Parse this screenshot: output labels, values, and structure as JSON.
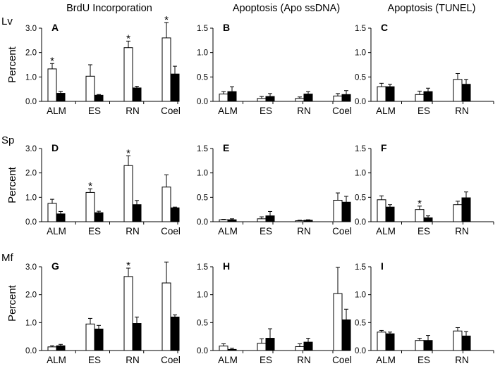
{
  "figure": {
    "column_titles": [
      "BrdU Incorporation",
      "Apoptosis (Apo ssDNA)",
      "Apoptosis (TUNEL)"
    ],
    "row_labels": [
      "Lv",
      "Sp",
      "Mf"
    ],
    "ylabel": "Percent",
    "colors": {
      "open_bar": "#ffffff",
      "filled_bar": "#000000",
      "axis": "#000000"
    }
  },
  "chart_data": [
    {
      "panel": "A",
      "type": "bar",
      "ylim": [
        0,
        3.0
      ],
      "yticks": [
        "0.0",
        "1.0",
        "2.0",
        "3.0"
      ],
      "categories": [
        "ALM",
        "ES",
        "RN",
        "Coel"
      ],
      "series": [
        {
          "values": [
            1.33,
            1.03,
            2.2,
            2.6
          ],
          "errors": [
            0.22,
            0.47,
            0.27,
            0.63
          ]
        },
        {
          "values": [
            0.33,
            0.25,
            0.55,
            1.12
          ],
          "errors": [
            0.08,
            0.03,
            0.07,
            0.32
          ]
        }
      ],
      "significant": [
        "ALM",
        "RN",
        "Coel"
      ]
    },
    {
      "panel": "B",
      "type": "bar",
      "ylim": [
        0,
        1.5
      ],
      "yticks": [
        "0.0",
        "0.5",
        "1.0",
        "1.5"
      ],
      "categories": [
        "ALM",
        "ES",
        "RN",
        "Coel"
      ],
      "series": [
        {
          "values": [
            0.15,
            0.06,
            0.06,
            0.11
          ],
          "errors": [
            0.05,
            0.04,
            0.03,
            0.05
          ]
        },
        {
          "values": [
            0.2,
            0.1,
            0.15,
            0.14
          ],
          "errors": [
            0.1,
            0.06,
            0.05,
            0.08
          ]
        }
      ],
      "significant": []
    },
    {
      "panel": "C",
      "type": "bar",
      "ylim": [
        0,
        1.5
      ],
      "yticks": [
        "0.0",
        "0.5",
        "1.0",
        "1.5"
      ],
      "categories": [
        "ALM",
        "ES",
        "RN"
      ],
      "series": [
        {
          "values": [
            0.3,
            0.14,
            0.45
          ],
          "errors": [
            0.07,
            0.07,
            0.12
          ]
        },
        {
          "values": [
            0.3,
            0.2,
            0.35
          ],
          "errors": [
            0.05,
            0.07,
            0.1
          ]
        }
      ],
      "significant": []
    },
    {
      "panel": "D",
      "type": "bar",
      "ylim": [
        0,
        3.0
      ],
      "yticks": [
        "0.0",
        "1.0",
        "2.0",
        "3.0"
      ],
      "categories": [
        "ALM",
        "ES",
        "RN",
        "Coel"
      ],
      "series": [
        {
          "values": [
            0.75,
            1.2,
            2.3,
            1.42
          ],
          "errors": [
            0.17,
            0.15,
            0.4,
            0.5
          ]
        },
        {
          "values": [
            0.32,
            0.37,
            0.7,
            0.57
          ],
          "errors": [
            0.1,
            0.06,
            0.17,
            0.03
          ]
        }
      ],
      "significant": [
        "ES",
        "RN"
      ]
    },
    {
      "panel": "E",
      "type": "bar",
      "ylim": [
        0,
        1.5
      ],
      "yticks": [
        "0.0",
        "0.5",
        "1.0",
        "1.5"
      ],
      "categories": [
        "ALM",
        "ES",
        "RN",
        "Coel"
      ],
      "series": [
        {
          "values": [
            0.04,
            0.06,
            0.02,
            0.44
          ],
          "errors": [
            0.01,
            0.04,
            0.01,
            0.15
          ]
        },
        {
          "values": [
            0.04,
            0.12,
            0.03,
            0.4
          ],
          "errors": [
            0.02,
            0.09,
            0.01,
            0.12
          ]
        }
      ],
      "significant": []
    },
    {
      "panel": "F",
      "type": "bar",
      "ylim": [
        0,
        1.5
      ],
      "yticks": [
        "0.0",
        "0.5",
        "1.0",
        "1.5"
      ],
      "categories": [
        "ALM",
        "ES",
        "RN"
      ],
      "series": [
        {
          "values": [
            0.45,
            0.25,
            0.35
          ],
          "errors": [
            0.08,
            0.07,
            0.07
          ]
        },
        {
          "values": [
            0.3,
            0.08,
            0.49
          ],
          "errors": [
            0.05,
            0.04,
            0.12
          ]
        }
      ],
      "significant": [
        "ES"
      ]
    },
    {
      "panel": "G",
      "type": "bar",
      "ylim": [
        0,
        3.0
      ],
      "yticks": [
        "0.0",
        "1.0",
        "2.0",
        "3.0"
      ],
      "categories": [
        "ALM",
        "ES",
        "RN",
        "Coel"
      ],
      "series": [
        {
          "values": [
            0.13,
            0.95,
            2.65,
            2.42
          ],
          "errors": [
            0.04,
            0.2,
            0.3,
            0.75
          ]
        },
        {
          "values": [
            0.17,
            0.77,
            0.97,
            1.2
          ],
          "errors": [
            0.05,
            0.13,
            0.23,
            0.08
          ]
        }
      ],
      "significant": [
        "RN"
      ]
    },
    {
      "panel": "H",
      "type": "bar",
      "ylim": [
        0,
        1.5
      ],
      "yticks": [
        "0.0",
        "0.5",
        "1.0",
        "1.5"
      ],
      "categories": [
        "ALM",
        "ES",
        "RN",
        "Coel"
      ],
      "series": [
        {
          "values": [
            0.08,
            0.13,
            0.07,
            1.02
          ],
          "errors": [
            0.04,
            0.08,
            0.05,
            0.47
          ]
        },
        {
          "values": [
            0.02,
            0.22,
            0.15,
            0.55
          ],
          "errors": [
            0.02,
            0.17,
            0.07,
            0.19
          ]
        }
      ],
      "significant": []
    },
    {
      "panel": "I",
      "type": "bar",
      "ylim": [
        0,
        1.5
      ],
      "yticks": [
        "0.0",
        "0.5",
        "1.0",
        "1.5"
      ],
      "categories": [
        "ALM",
        "ES",
        "RN"
      ],
      "series": [
        {
          "values": [
            0.33,
            0.18,
            0.35
          ],
          "errors": [
            0.03,
            0.04,
            0.06
          ]
        },
        {
          "values": [
            0.3,
            0.18,
            0.26
          ],
          "errors": [
            0.03,
            0.09,
            0.08
          ]
        }
      ],
      "significant": []
    }
  ]
}
